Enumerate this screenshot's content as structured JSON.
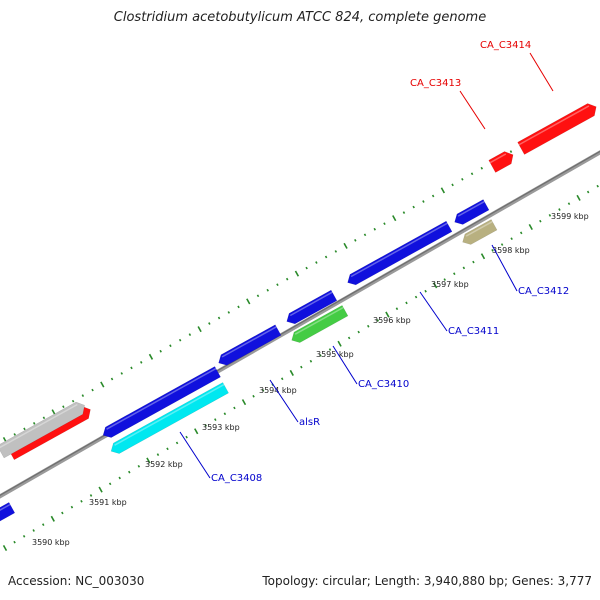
{
  "title": "Clostridium acetobutylicum ATCC 824, complete genome",
  "accession": "Accession: NC_003030",
  "summary": "Topology: circular; Length: 3,940,880 bp; Genes: 3,777",
  "colors": {
    "backbone": "#888888",
    "ticks": "#2a8a2a",
    "label_forward": "#e60000",
    "label_reverse": "#0000cc",
    "cds": "#1010dd",
    "rrna": "#00e8f0",
    "trna": "#44cc44",
    "misc": "#b8b080",
    "other": "#c0c0c0",
    "forward": "#ff1010"
  },
  "scale_labels": [
    "3590 kbp",
    "3591 kbp",
    "3592 kbp",
    "3593 kbp",
    "3594 kbp",
    "3595 kbp",
    "3596 kbp",
    "3597 kbp",
    "3598 kbp",
    "3599 kbp"
  ],
  "gene_labels": [
    {
      "text": "CA_C3414",
      "strand": "forward"
    },
    {
      "text": "CA_C3413",
      "strand": "forward"
    },
    {
      "text": "CA_C3412",
      "strand": "reverse"
    },
    {
      "text": "CA_C3411",
      "strand": "reverse"
    },
    {
      "text": "CA_C3410",
      "strand": "reverse"
    },
    {
      "text": "alsR",
      "strand": "reverse"
    },
    {
      "text": "CA_C3408",
      "strand": "reverse"
    }
  ]
}
